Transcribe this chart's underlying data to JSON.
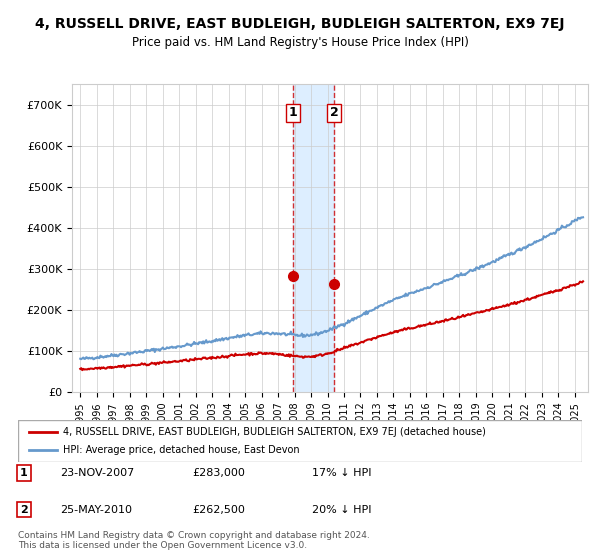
{
  "title": "4, RUSSELL DRIVE, EAST BUDLEIGH, BUDLEIGH SALTERTON, EX9 7EJ",
  "subtitle": "Price paid vs. HM Land Registry's House Price Index (HPI)",
  "ylabel_ticks": [
    "£0",
    "£100K",
    "£200K",
    "£300K",
    "£400K",
    "£500K",
    "£600K",
    "£700K"
  ],
  "ytick_values": [
    0,
    100000,
    200000,
    300000,
    400000,
    500000,
    600000,
    700000
  ],
  "ylim": [
    0,
    750000
  ],
  "xlim_start": 1995.0,
  "xlim_end": 2025.5,
  "sale1_date": 2007.9,
  "sale1_price": 283000,
  "sale1_label": "1",
  "sale2_date": 2010.4,
  "sale2_price": 262500,
  "sale2_label": "2",
  "legend_line1": "4, RUSSELL DRIVE, EAST BUDLEIGH, BUDLEIGH SALTERTON, EX9 7EJ (detached house)",
  "legend_line2": "HPI: Average price, detached house, East Devon",
  "table_row1": [
    "1",
    "23-NOV-2007",
    "£283,000",
    "17% ↓ HPI"
  ],
  "table_row2": [
    "2",
    "25-MAY-2010",
    "£262,500",
    "20% ↓ HPI"
  ],
  "footnote": "Contains HM Land Registry data © Crown copyright and database right 2024.\nThis data is licensed under the Open Government Licence v3.0.",
  "red_color": "#cc0000",
  "blue_color": "#6699cc",
  "highlight_color": "#ddeeff"
}
